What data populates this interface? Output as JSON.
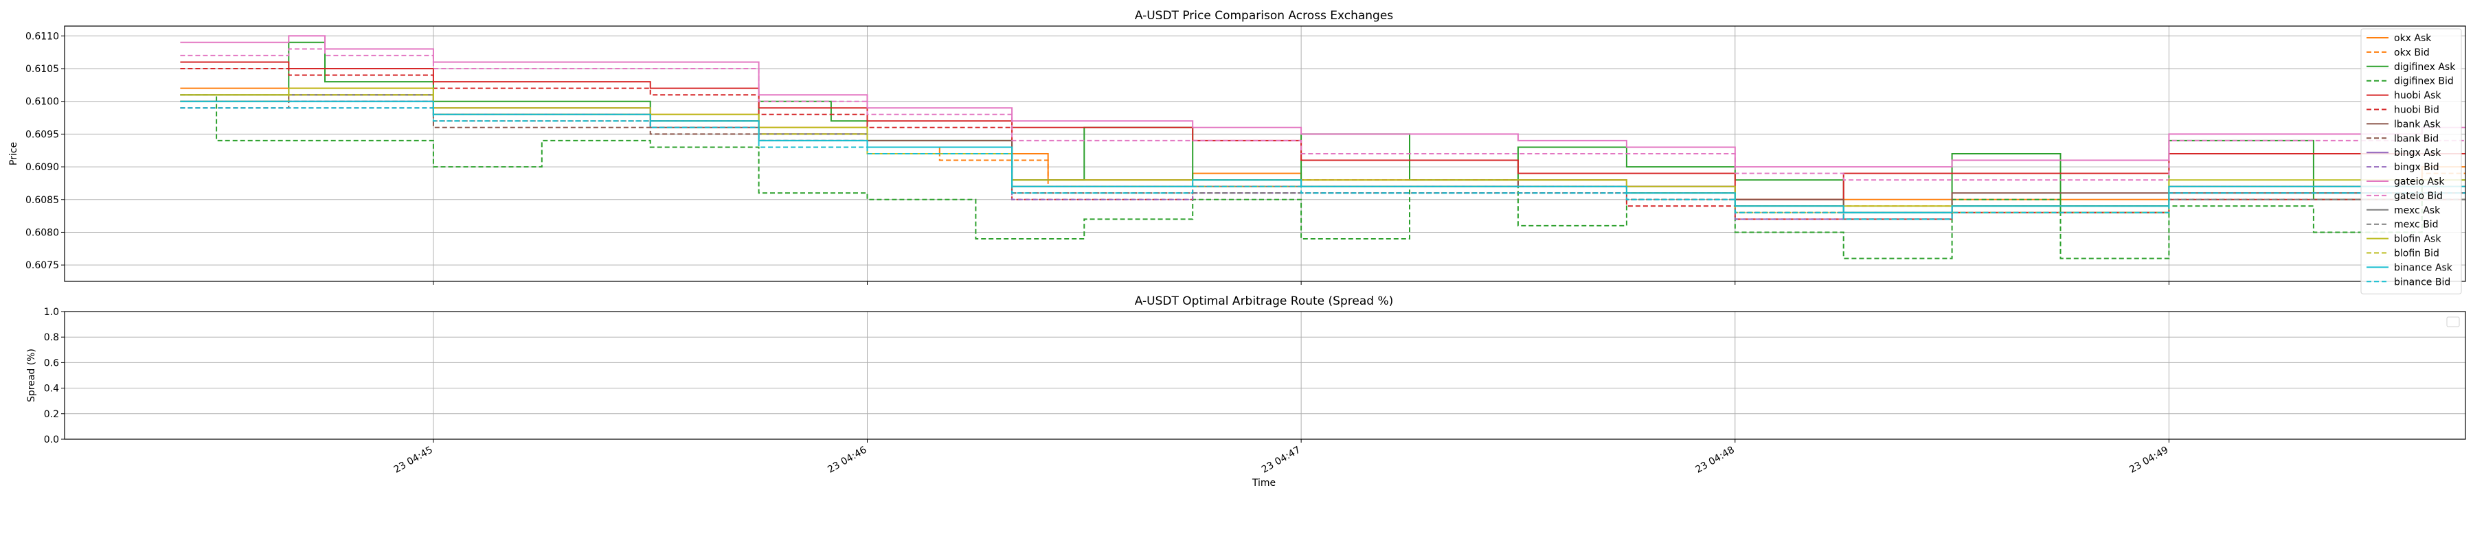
{
  "chart_data": [
    {
      "type": "line",
      "title": "A-USDT Price Comparison Across Exchanges",
      "xlabel": "",
      "ylabel": "Price",
      "ylim": [
        0.60725,
        0.61115
      ],
      "yticks": [
        0.6075,
        0.608,
        0.6085,
        0.609,
        0.6095,
        0.61,
        0.6105,
        0.611
      ],
      "ytick_labels": [
        "0.6075",
        "0.6080",
        "0.6085",
        "0.6090",
        "0.6095",
        "0.6100",
        "0.6105",
        "0.6110"
      ],
      "xlim": [
        "04:44:09",
        "04:49:41"
      ],
      "xticks": [
        "04:45:00",
        "04:46:00",
        "04:47:00",
        "04:48:00",
        "04:49:00"
      ],
      "grid": true,
      "legend_position": "right",
      "series": [
        {
          "name": "okx Ask",
          "color": "#ff7f0e",
          "dash": "solid",
          "x": [
            "04:44:25",
            "04:44:40",
            "04:45:00",
            "04:45:30",
            "04:45:45",
            "04:46:00",
            "04:46:10",
            "04:46:25",
            "04:46:45",
            "04:47:00",
            "04:47:15",
            "04:47:30",
            "04:47:45",
            "04:48:00",
            "04:48:15",
            "04:48:30",
            "04:49:00",
            "04:49:35"
          ],
          "y": [
            0.6102,
            0.6102,
            0.6099,
            0.6098,
            0.6096,
            0.6093,
            0.6092,
            0.6088,
            0.6089,
            0.6088,
            0.6088,
            0.6088,
            0.6087,
            0.6085,
            0.6085,
            0.6085,
            0.6087,
            0.609
          ]
        },
        {
          "name": "okx Bid",
          "color": "#ff7f0e",
          "dash": "dashed",
          "x": [
            "04:44:25",
            "04:44:40",
            "04:45:00",
            "04:45:30",
            "04:45:45",
            "04:46:00",
            "04:46:10",
            "04:46:25",
            "04:46:45",
            "04:47:00",
            "04:47:15",
            "04:47:30",
            "04:47:45",
            "04:48:00",
            "04:48:15",
            "04:48:30",
            "04:49:00",
            "04:49:35"
          ],
          "y": [
            0.6101,
            0.6101,
            0.6098,
            0.6097,
            0.6095,
            0.6092,
            0.6091,
            0.6087,
            0.6088,
            0.6087,
            0.6087,
            0.6087,
            0.6086,
            0.6084,
            0.6084,
            0.6084,
            0.6086,
            0.6089
          ]
        },
        {
          "name": "digifinex Ask",
          "color": "#2ca02c",
          "dash": "solid",
          "x": [
            "04:44:25",
            "04:44:40",
            "04:44:45",
            "04:45:00",
            "04:45:30",
            "04:45:45",
            "04:45:55",
            "04:46:00",
            "04:46:10",
            "04:46:20",
            "04:46:30",
            "04:46:45",
            "04:47:00",
            "04:47:15",
            "04:47:30",
            "04:47:45",
            "04:48:00",
            "04:48:15",
            "04:48:30",
            "04:48:45",
            "04:49:00",
            "04:49:20",
            "04:49:35"
          ],
          "y": [
            0.6101,
            0.6109,
            0.6103,
            0.61,
            0.6097,
            0.61,
            0.6097,
            0.6094,
            0.6094,
            0.6088,
            0.6096,
            0.6088,
            0.6095,
            0.6088,
            0.6093,
            0.609,
            0.6088,
            0.6083,
            0.6092,
            0.6083,
            0.6094,
            0.6085,
            0.6088
          ]
        },
        {
          "name": "digifinex Bid",
          "color": "#2ca02c",
          "dash": "dashed",
          "x": [
            "04:44:25",
            "04:44:30",
            "04:44:45",
            "04:45:00",
            "04:45:15",
            "04:45:30",
            "04:45:45",
            "04:46:00",
            "04:46:15",
            "04:46:30",
            "04:46:45",
            "04:47:00",
            "04:47:15",
            "04:47:30",
            "04:47:45",
            "04:48:00",
            "04:48:15",
            "04:48:30",
            "04:48:45",
            "04:49:00",
            "04:49:20",
            "04:49:35"
          ],
          "y": [
            0.6101,
            0.6094,
            0.6094,
            0.609,
            0.6094,
            0.6093,
            0.6086,
            0.6085,
            0.6079,
            0.6082,
            0.6085,
            0.6079,
            0.6087,
            0.6081,
            0.6085,
            0.608,
            0.6076,
            0.6085,
            0.6076,
            0.6084,
            0.608,
            0.6085
          ]
        },
        {
          "name": "huobi Ask",
          "color": "#d62728",
          "dash": "solid",
          "x": [
            "04:44:25",
            "04:44:40",
            "04:45:00",
            "04:45:30",
            "04:45:45",
            "04:46:00",
            "04:46:20",
            "04:46:45",
            "04:47:00",
            "04:47:30",
            "04:47:45",
            "04:48:00",
            "04:48:15",
            "04:48:30",
            "04:49:00",
            "04:49:35"
          ],
          "y": [
            0.6106,
            0.6105,
            0.6103,
            0.6102,
            0.6099,
            0.6097,
            0.6096,
            0.6094,
            0.6091,
            0.6089,
            0.6089,
            0.6085,
            0.6089,
            0.6089,
            0.6092,
            0.6092
          ]
        },
        {
          "name": "huobi Bid",
          "color": "#d62728",
          "dash": "dashed",
          "x": [
            "04:44:25",
            "04:44:40",
            "04:45:00",
            "04:45:30",
            "04:45:45",
            "04:46:00",
            "04:46:20",
            "04:46:45",
            "04:47:00",
            "04:47:30",
            "04:47:45",
            "04:48:00",
            "04:48:15",
            "04:48:30",
            "04:49:00",
            "04:49:35"
          ],
          "y": [
            0.6105,
            0.6104,
            0.6102,
            0.6101,
            0.6098,
            0.6096,
            0.6085,
            0.6087,
            0.6088,
            0.6087,
            0.6084,
            0.6082,
            0.6082,
            0.6083,
            0.6085,
            0.6085
          ]
        },
        {
          "name": "lbank Ask",
          "color": "#8c564b",
          "dash": "solid",
          "x": [
            "04:44:25",
            "04:44:40",
            "04:45:00",
            "04:45:30",
            "04:45:45",
            "04:46:00",
            "04:46:20",
            "04:46:45",
            "04:47:00",
            "04:47:30",
            "04:47:45",
            "04:48:00",
            "04:48:15",
            "04:48:30",
            "04:49:00",
            "04:49:35"
          ],
          "y": [
            0.61,
            0.6101,
            0.6098,
            0.6096,
            0.6095,
            0.6094,
            0.6088,
            0.6088,
            0.6087,
            0.6088,
            0.6087,
            0.6085,
            0.6083,
            0.6086,
            0.6086,
            0.6086
          ]
        },
        {
          "name": "lbank Bid",
          "color": "#8c564b",
          "dash": "dashed",
          "x": [
            "04:44:25",
            "04:44:40",
            "04:45:00",
            "04:45:30",
            "04:45:45",
            "04:46:00",
            "04:46:20",
            "04:46:45",
            "04:47:00",
            "04:47:30",
            "04:47:45",
            "04:48:00",
            "04:48:15",
            "04:48:30",
            "04:49:00",
            "04:49:35"
          ],
          "y": [
            0.6099,
            0.61,
            0.6096,
            0.6095,
            0.6094,
            0.6093,
            0.6086,
            0.6086,
            0.6086,
            0.6086,
            0.6086,
            0.6083,
            0.6082,
            0.6084,
            0.6085,
            0.6085
          ]
        },
        {
          "name": "bingx Ask",
          "color": "#9467bd",
          "dash": "solid",
          "x": [
            "04:44:25",
            "04:44:40",
            "04:45:00",
            "04:45:30",
            "04:45:45",
            "04:46:00",
            "04:46:20",
            "04:46:45",
            "04:47:00",
            "04:47:30",
            "04:47:45",
            "04:48:00",
            "04:48:15",
            "04:48:30",
            "04:49:00",
            "04:49:35"
          ],
          "y": [
            0.61,
            0.61,
            0.6099,
            0.6097,
            0.6095,
            0.6093,
            0.6087,
            0.6087,
            0.6087,
            0.6087,
            0.6087,
            0.6084,
            0.6083,
            0.6084,
            0.6087,
            0.6087
          ]
        },
        {
          "name": "bingx Bid",
          "color": "#9467bd",
          "dash": "dashed",
          "x": [
            "04:44:25",
            "04:44:40",
            "04:45:00",
            "04:45:30",
            "04:45:45",
            "04:46:00",
            "04:46:20",
            "04:46:45",
            "04:47:00",
            "04:47:30",
            "04:47:45",
            "04:48:00",
            "04:48:15",
            "04:48:30",
            "04:49:00",
            "04:49:35"
          ],
          "y": [
            0.6099,
            0.6099,
            0.6098,
            0.6096,
            0.6094,
            0.6092,
            0.6085,
            0.6086,
            0.6086,
            0.6086,
            0.6085,
            0.6082,
            0.6082,
            0.6083,
            0.6086,
            0.6086
          ]
        },
        {
          "name": "gateio Ask",
          "color": "#e377c2",
          "dash": "solid",
          "x": [
            "04:44:25",
            "04:44:40",
            "04:44:45",
            "04:45:00",
            "04:45:30",
            "04:45:45",
            "04:46:00",
            "04:46:20",
            "04:46:45",
            "04:47:00",
            "04:47:30",
            "04:47:45",
            "04:48:00",
            "04:48:15",
            "04:48:30",
            "04:49:00",
            "04:49:35"
          ],
          "y": [
            0.6109,
            0.611,
            0.6108,
            0.6106,
            0.6106,
            0.6101,
            0.6099,
            0.6097,
            0.6096,
            0.6095,
            0.6094,
            0.6093,
            0.609,
            0.609,
            0.6091,
            0.6095,
            0.6096
          ]
        },
        {
          "name": "gateio Bid",
          "color": "#e377c2",
          "dash": "dashed",
          "x": [
            "04:44:25",
            "04:44:40",
            "04:44:45",
            "04:45:00",
            "04:45:30",
            "04:45:45",
            "04:46:00",
            "04:46:20",
            "04:46:45",
            "04:47:00",
            "04:47:30",
            "04:47:45",
            "04:48:00",
            "04:48:15",
            "04:48:30",
            "04:49:00",
            "04:49:35"
          ],
          "y": [
            0.6107,
            0.6108,
            0.6107,
            0.6105,
            0.6105,
            0.61,
            0.6098,
            0.6094,
            0.6094,
            0.6092,
            0.6092,
            0.6092,
            0.6089,
            0.6088,
            0.6088,
            0.6094,
            0.6094
          ]
        },
        {
          "name": "mexc Ask",
          "color": "#7f7f7f",
          "dash": "solid",
          "x": [
            "04:44:25",
            "04:44:40",
            "04:45:00",
            "04:45:30",
            "04:45:45",
            "04:46:00",
            "04:46:20",
            "04:46:45",
            "04:47:00",
            "04:47:30",
            "04:47:45",
            "04:48:00",
            "04:48:15",
            "04:48:30",
            "04:49:00",
            "04:49:35"
          ],
          "y": [
            0.6101,
            0.6101,
            0.6098,
            0.6097,
            0.6095,
            0.6093,
            0.6087,
            0.6087,
            0.6087,
            0.6087,
            0.6086,
            0.6084,
            0.6083,
            0.6084,
            0.6086,
            0.6086
          ]
        },
        {
          "name": "mexc Bid",
          "color": "#7f7f7f",
          "dash": "dashed",
          "x": [
            "04:44:25",
            "04:44:40",
            "04:45:00",
            "04:45:30",
            "04:45:45",
            "04:46:00",
            "04:46:20",
            "04:46:45",
            "04:47:00",
            "04:47:30",
            "04:47:45",
            "04:48:00",
            "04:48:15",
            "04:48:30",
            "04:49:00",
            "04:49:35"
          ],
          "y": [
            0.61,
            0.61,
            0.6097,
            0.6096,
            0.6094,
            0.6092,
            0.6086,
            0.6086,
            0.6086,
            0.6086,
            0.6085,
            0.6083,
            0.6082,
            0.6083,
            0.6085,
            0.6085
          ]
        },
        {
          "name": "blofin Ask",
          "color": "#bcbd22",
          "dash": "solid",
          "x": [
            "04:44:25",
            "04:44:40",
            "04:45:00",
            "04:45:30",
            "04:45:45",
            "04:46:00",
            "04:46:20",
            "04:46:45",
            "04:47:00",
            "04:47:30",
            "04:47:45",
            "04:48:00",
            "04:48:15",
            "04:48:30",
            "04:49:00",
            "04:49:35"
          ],
          "y": [
            0.6101,
            0.6102,
            0.6099,
            0.6098,
            0.6096,
            0.6093,
            0.6088,
            0.6088,
            0.6088,
            0.6088,
            0.6087,
            0.6084,
            0.6084,
            0.6084,
            0.6088,
            0.6088
          ]
        },
        {
          "name": "blofin Bid",
          "color": "#bcbd22",
          "dash": "dashed",
          "x": [
            "04:44:25",
            "04:44:40",
            "04:45:00",
            "04:45:30",
            "04:45:45",
            "04:46:00",
            "04:46:20",
            "04:46:45",
            "04:47:00",
            "04:47:30",
            "04:47:45",
            "04:48:00",
            "04:48:15",
            "04:48:30",
            "04:49:00",
            "04:49:35"
          ],
          "y": [
            0.61,
            0.6101,
            0.6098,
            0.6097,
            0.6095,
            0.6092,
            0.6087,
            0.6087,
            0.6087,
            0.6087,
            0.6086,
            0.6083,
            0.6083,
            0.6083,
            0.6087,
            0.6087
          ]
        },
        {
          "name": "binance Ask",
          "color": "#17becf",
          "dash": "solid",
          "x": [
            "04:44:25",
            "04:44:40",
            "04:45:00",
            "04:45:30",
            "04:45:45",
            "04:46:00",
            "04:46:20",
            "04:46:45",
            "04:47:00",
            "04:47:30",
            "04:47:45",
            "04:48:00",
            "04:48:15",
            "04:48:30",
            "04:49:00",
            "04:49:35"
          ],
          "y": [
            0.61,
            0.61,
            0.6098,
            0.6097,
            0.6094,
            0.6093,
            0.6087,
            0.6088,
            0.6087,
            0.6087,
            0.6086,
            0.6084,
            0.6083,
            0.6084,
            0.6087,
            0.6087
          ]
        },
        {
          "name": "binance Bid",
          "color": "#17becf",
          "dash": "dashed",
          "x": [
            "04:44:25",
            "04:44:40",
            "04:45:00",
            "04:45:30",
            "04:45:45",
            "04:46:00",
            "04:46:20",
            "04:46:45",
            "04:47:00",
            "04:47:30",
            "04:47:45",
            "04:48:00",
            "04:48:15",
            "04:48:30",
            "04:49:00",
            "04:49:35"
          ],
          "y": [
            0.6099,
            0.6099,
            0.6097,
            0.6096,
            0.6093,
            0.6092,
            0.6086,
            0.6087,
            0.6086,
            0.6086,
            0.6085,
            0.6083,
            0.6082,
            0.6083,
            0.6086,
            0.6086
          ]
        }
      ]
    },
    {
      "type": "line",
      "title": "A-USDT Optimal Arbitrage Route (Spread %)",
      "xlabel": "Time",
      "ylabel": "Spread (%)",
      "ylim": [
        0.0,
        1.0
      ],
      "yticks": [
        0.0,
        0.2,
        0.4,
        0.6,
        0.8,
        1.0
      ],
      "ytick_labels": [
        "0.0",
        "0.2",
        "0.4",
        "0.6",
        "0.8",
        "1.0"
      ],
      "xlim": [
        "04:44:09",
        "04:49:41"
      ],
      "xticks": [
        "04:45:00",
        "04:46:00",
        "04:47:00",
        "04:48:00",
        "04:49:00"
      ],
      "xtick_labels": [
        "23 04:45",
        "23 04:46",
        "23 04:47",
        "23 04:48",
        "23 04:49"
      ],
      "grid": true,
      "series": []
    }
  ]
}
